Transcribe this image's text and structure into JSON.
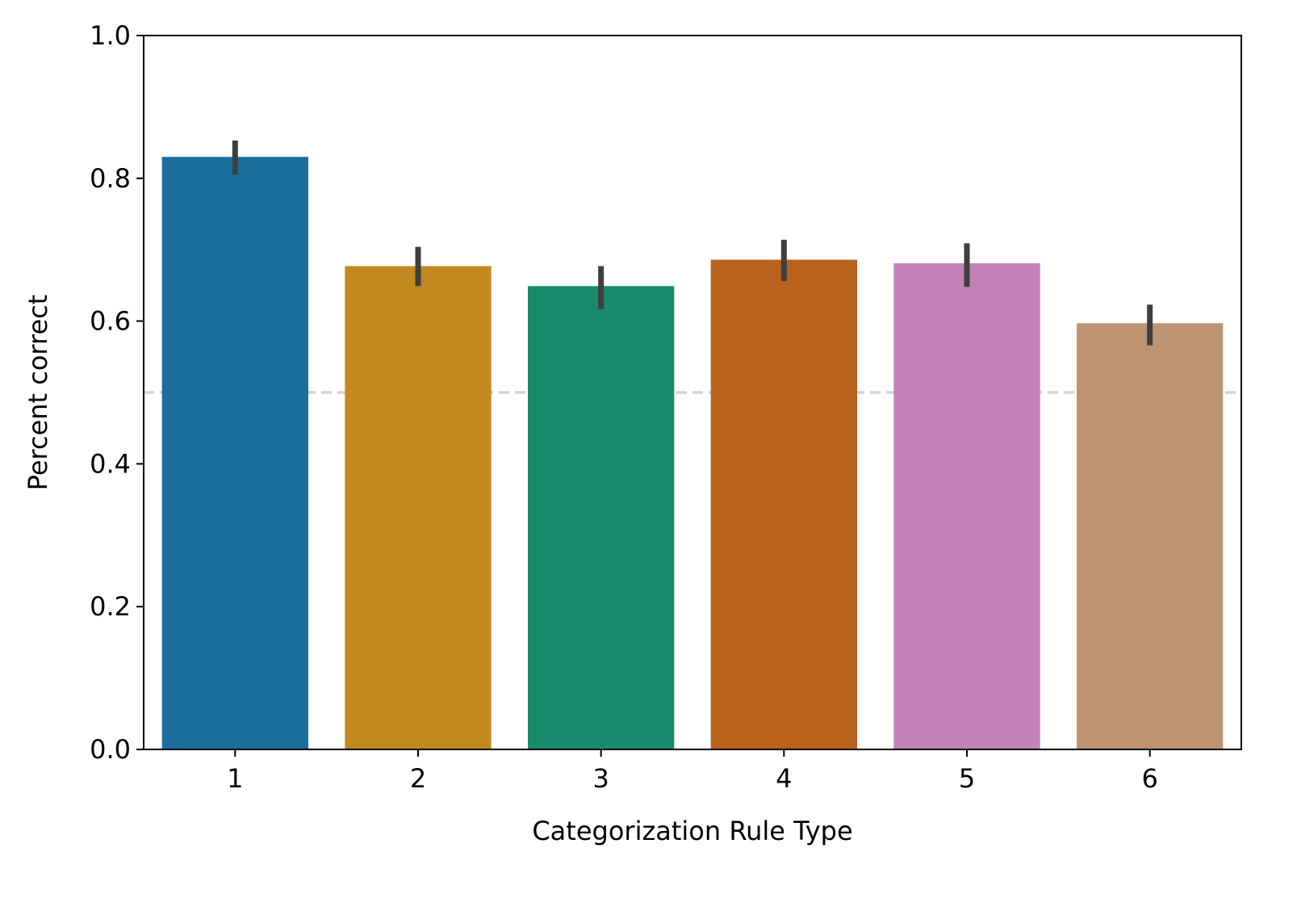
{
  "chart_data": {
    "type": "bar",
    "title": "",
    "xlabel": "Categorization Rule Type",
    "ylabel": "Percent correct",
    "categories": [
      "1",
      "2",
      "3",
      "4",
      "5",
      "6"
    ],
    "values": [
      0.83,
      0.677,
      0.649,
      0.686,
      0.681,
      0.597
    ],
    "error_low": [
      0.805,
      0.649,
      0.617,
      0.656,
      0.648,
      0.566
    ],
    "error_high": [
      0.853,
      0.704,
      0.677,
      0.714,
      0.709,
      0.623
    ],
    "colors": [
      "#1a6e9d",
      "#c38820",
      "#178b6b",
      "#b9611d",
      "#c382b5",
      "#bd9371"
    ],
    "error_color": "#3f3f3f",
    "ylim": [
      0,
      1.0
    ],
    "yticks": [
      "0.0",
      "0.2",
      "0.4",
      "0.6",
      "0.8",
      "1.0"
    ],
    "reference_line": {
      "y": 0.5,
      "style": "dashed",
      "color": "#d3d3d3"
    },
    "grid": false,
    "legend": "none"
  }
}
